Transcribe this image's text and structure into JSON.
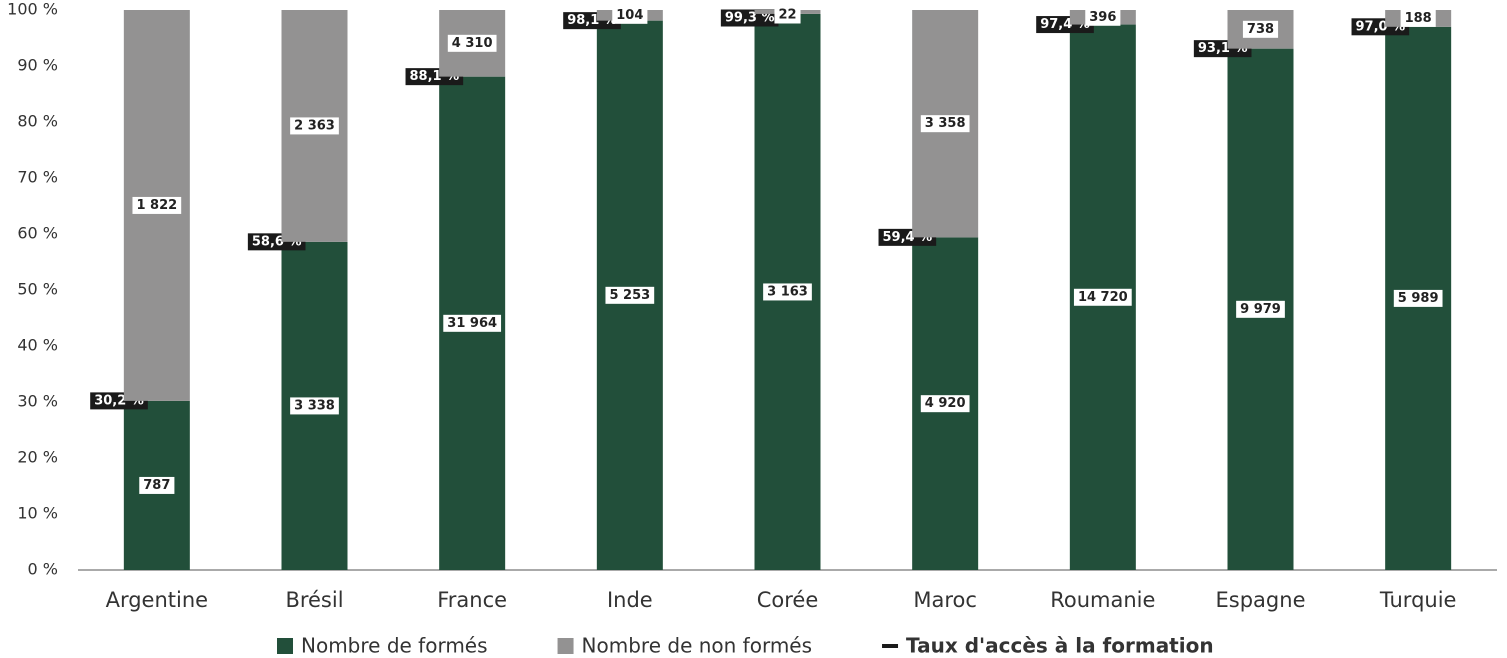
{
  "chart_data": {
    "type": "stacked_bar_100",
    "categories": [
      "Argentine",
      "Brésil",
      "France",
      "Inde",
      "Corée",
      "Maroc",
      "Roumanie",
      "Espagne",
      "Turquie"
    ],
    "series": [
      {
        "name": "Nombre de formés",
        "color": "#224f3a",
        "values": [
          30.2,
          58.6,
          88.1,
          98.1,
          99.3,
          59.4,
          97.4,
          93.1,
          97.0
        ],
        "value_labels": [
          "30,2 %",
          "58,6 %",
          "88,1 %",
          "98,1 %",
          "99,3 %",
          "59,4 %",
          "97,4 %",
          "93,1 %",
          "97,0 %"
        ],
        "count_labels": [
          "787",
          "3 338",
          "31 964",
          "5 253",
          "3 163",
          "4 920",
          "14 720",
          "9 979",
          "5 989"
        ]
      },
      {
        "name": "Nombre de non formés",
        "color": "#939292",
        "values": [
          69.8,
          41.4,
          11.9,
          1.9,
          0.7,
          40.6,
          2.6,
          6.9,
          3.0
        ],
        "count_labels": [
          "1 822",
          "2 363",
          "4 310",
          "104",
          "22",
          "3 358",
          "396",
          "738",
          "188"
        ]
      }
    ],
    "rate_name": "Taux d'accès à la formation",
    "ylim": [
      0,
      100
    ],
    "yticks": [
      {
        "value": 0,
        "label": "0 %"
      },
      {
        "value": 10,
        "label": "10 %"
      },
      {
        "value": 20,
        "label": "20 %"
      },
      {
        "value": 30,
        "label": "30 %"
      },
      {
        "value": 40,
        "label": "40 %"
      },
      {
        "value": 50,
        "label": "50 %"
      },
      {
        "value": 60,
        "label": "60 %"
      },
      {
        "value": 70,
        "label": "70 %"
      },
      {
        "value": 80,
        "label": "80 %"
      },
      {
        "value": 90,
        "label": "90 %"
      },
      {
        "value": 100,
        "label": "100 %"
      }
    ]
  }
}
